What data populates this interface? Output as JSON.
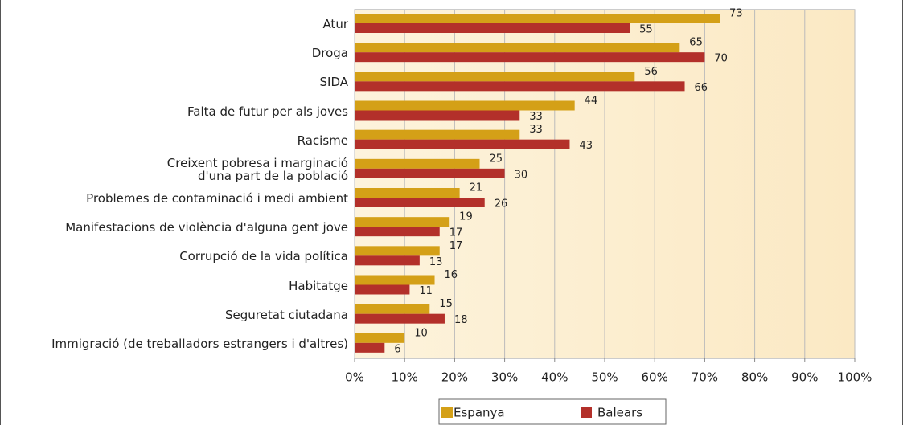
{
  "chart_data": {
    "type": "bar",
    "orientation": "horizontal",
    "categories": [
      "Atur",
      "Droga",
      "SIDA",
      "Falta de futur per als joves",
      "Racisme",
      "Creixent pobresa i marginació\nd'una part de la població",
      "Problemes de contaminació i medi ambient",
      "Manifestacions de violència d'alguna gent jove",
      "Corrupció de la vida política",
      "Habitatge",
      "Seguretat ciutadana",
      "Immigració (de treballadors estrangers i d'altres)"
    ],
    "series": [
      {
        "name": "Espanya",
        "color": "#d4a017",
        "values": [
          73,
          65,
          56,
          44,
          33,
          25,
          21,
          19,
          17,
          16,
          15,
          10
        ]
      },
      {
        "name": "Balears",
        "color": "#b3302a",
        "values": [
          55,
          70,
          66,
          33,
          43,
          30,
          26,
          17,
          13,
          11,
          18,
          6
        ]
      }
    ],
    "xlim": [
      0,
      100
    ],
    "xticks": [
      {
        "value": 0,
        "label": "0%"
      },
      {
        "value": 10,
        "label": "10%"
      },
      {
        "value": 20,
        "label": "20%"
      },
      {
        "value": 30,
        "label": "30%"
      },
      {
        "value": 40,
        "label": "40%"
      },
      {
        "value": 50,
        "label": "50%"
      },
      {
        "value": 60,
        "label": "60%"
      },
      {
        "value": 70,
        "label": "70%"
      },
      {
        "value": 80,
        "label": "80%"
      },
      {
        "value": 90,
        "label": "90%"
      },
      {
        "value": 100,
        "label": "100%"
      }
    ],
    "grid": true,
    "legend": "bottom"
  }
}
